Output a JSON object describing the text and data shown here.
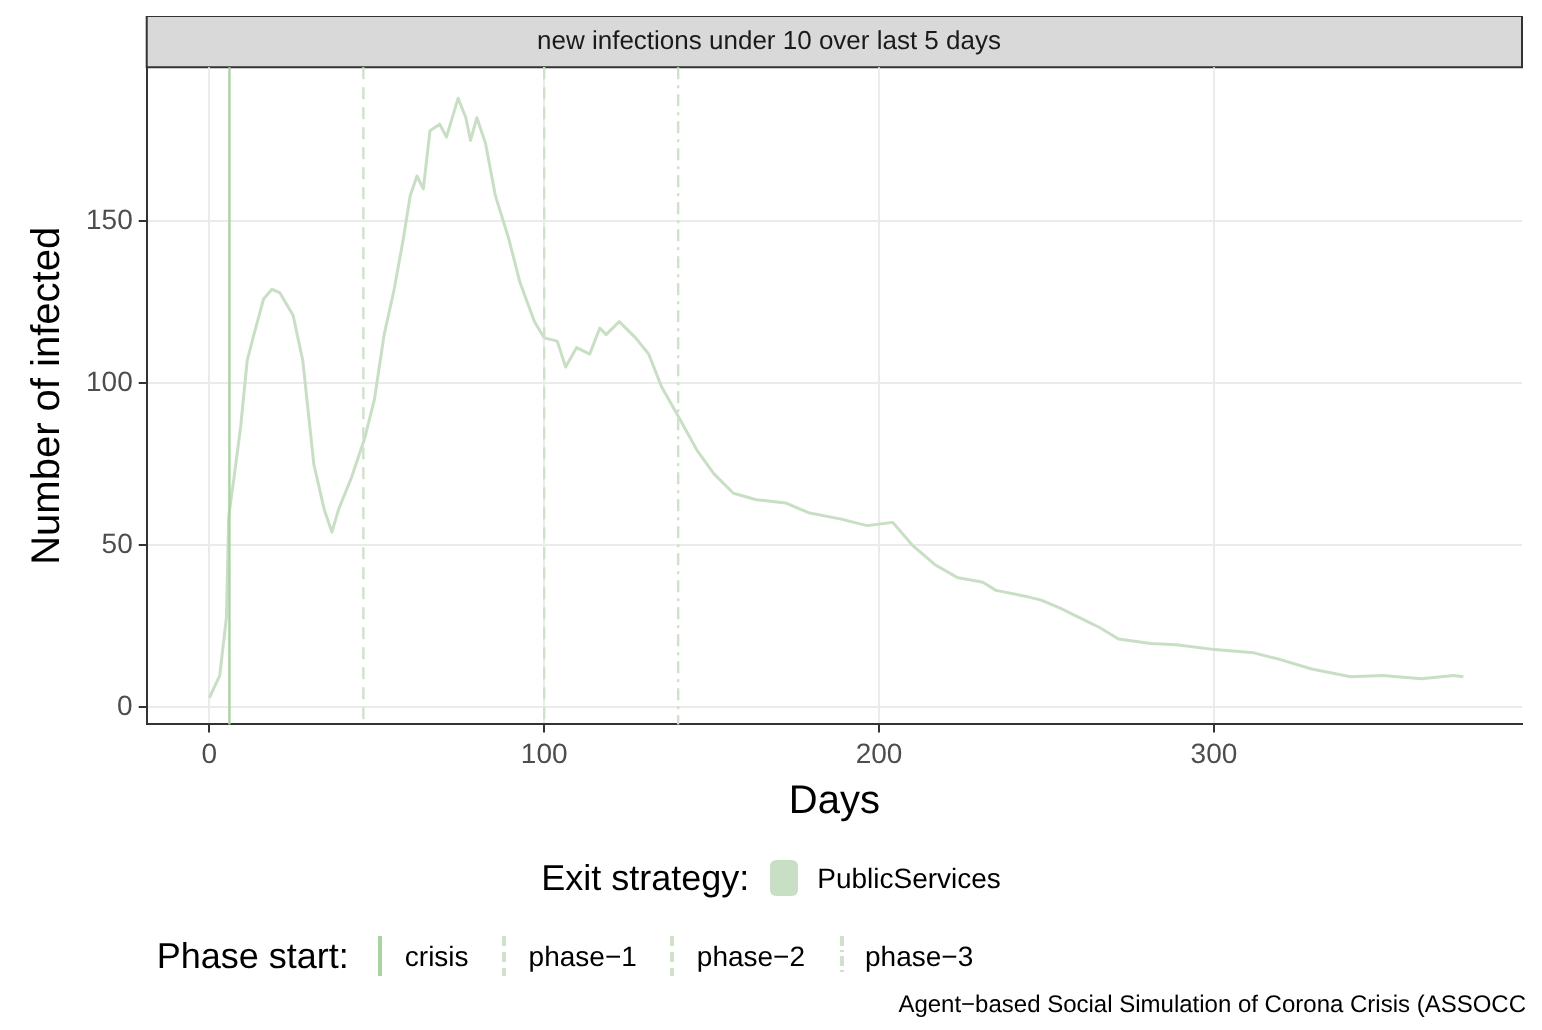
{
  "chart_data": {
    "type": "line",
    "title": "new infections under 10 over last 5 days",
    "xlabel": "Days",
    "ylabel": "Number of infected",
    "legend_title": "Exit strategy:",
    "x": [
      0,
      3.1,
      5.1,
      5.8,
      7.4,
      9.4,
      11.3,
      13.3,
      16.2,
      18.7,
      21,
      25,
      27.9,
      31.2,
      34.3,
      36.6,
      38.6,
      42.5,
      46.4,
      49.3,
      52.2,
      55.2,
      58,
      60,
      62,
      63.9,
      65.9,
      68.8,
      70.8,
      74.3,
      76.6,
      78,
      79.9,
      82.5,
      85.4,
      89.3,
      92.8,
      97.1,
      100,
      103.9,
      106.4,
      109.7,
      113.6,
      116.6,
      118.5,
      122.4,
      127.3,
      131.2,
      135,
      139.9,
      145.8,
      150.7,
      156.5,
      163.4,
      172.1,
      178.9,
      188.7,
      196.4,
      204.1,
      209.9,
      216.6,
      223.3,
      231,
      234.9,
      244.5,
      248.4,
      254.1,
      261.8,
      265.7,
      271.5,
      281.1,
      288.8,
      300.3,
      311.9,
      319.6,
      329.2,
      340.8,
      350.4,
      362,
      371.6,
      374.5
    ],
    "series": [
      {
        "name": "PublicServices",
        "color": "#c9dfc5",
        "values": [
          2.8,
          9.7,
          27.6,
          59,
          71,
          87,
          107,
          115,
          126,
          129,
          128,
          121,
          107,
          75,
          61,
          54,
          61,
          71,
          83,
          95,
          115,
          129,
          145,
          158,
          164,
          160,
          178,
          180,
          176,
          188,
          182,
          175,
          182,
          174,
          158,
          145,
          131,
          119,
          114,
          113,
          105,
          111,
          109,
          117,
          115,
          119,
          114,
          109,
          99,
          90,
          79,
          72,
          66,
          64,
          63,
          60,
          58,
          56,
          57,
          50,
          44,
          40,
          38.5,
          36,
          34,
          33,
          30.5,
          26.6,
          24.6,
          21,
          19.6,
          19.2,
          17.7,
          16.7,
          14.7,
          11.7,
          9.3,
          9.7,
          8.7,
          9.7,
          9.3
        ]
      }
    ],
    "xlim": [
      -18.7,
      392
    ],
    "ylim": [
      -5.4,
      197.6
    ],
    "xticks": [
      0,
      100,
      200,
      300
    ],
    "yticks": [
      0,
      50,
      100,
      150
    ],
    "grid": true,
    "legend": "bottom",
    "ref_lines": [
      {
        "axis": "x",
        "value": 6,
        "label": "crisis",
        "color": "#a9d4a1",
        "line_style": "solid"
      },
      {
        "axis": "x",
        "value": 46,
        "label": "phase−1",
        "color": "#cfe0cb",
        "line_style": "dashed"
      },
      {
        "axis": "x",
        "value": 100,
        "label": "phase−2",
        "color": "#cfe0cb",
        "line_style": "dashed"
      },
      {
        "axis": "x",
        "value": 140,
        "label": "phase−3",
        "color": "#cfe0cb",
        "line_style": "dotted"
      }
    ],
    "annotations": [
      "Phase start:",
      "Agent−based Social Simulation of Corona Crisis (ASSOCC"
    ]
  }
}
